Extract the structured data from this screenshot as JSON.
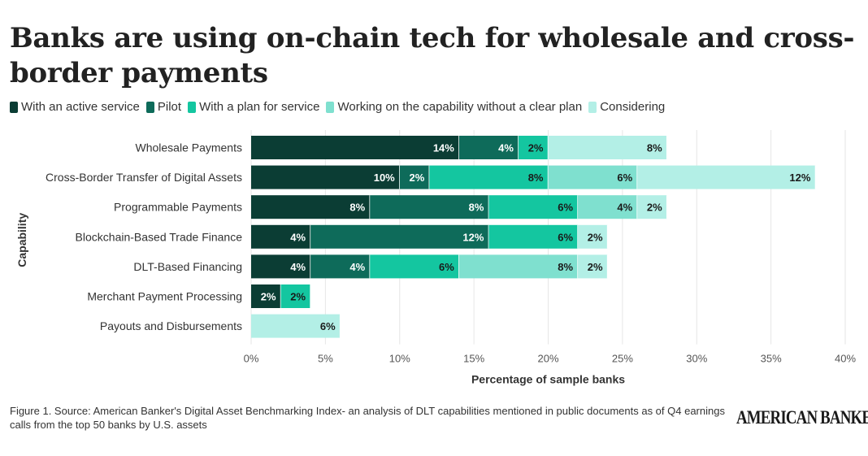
{
  "title": "Banks are using on-chain tech for wholesale and cross-border payments",
  "footer": {
    "caption": "Figure 1. Source: American Banker's Digital Asset Benchmarking Index- an analysis of DLT capabilities mentioned in public documents as of Q4 earnings calls from the top 50 banks by U.S. assets",
    "brand": "AMERICAN BANKER"
  },
  "chart_data": {
    "type": "bar",
    "orientation": "horizontal",
    "stacked": true,
    "categories": [
      "Wholesale Payments",
      "Cross-Border Transfer of Digital Assets",
      "Programmable Payments",
      "Blockchain-Based Trade Finance",
      "DLT-Based Financing",
      "Merchant Payment Processing",
      "Payouts and Disbursements"
    ],
    "series": [
      {
        "name": "With an active service",
        "color": "#0b3d34",
        "values": [
          14,
          10,
          8,
          4,
          4,
          2,
          0
        ]
      },
      {
        "name": "Pilot",
        "color": "#0e6b5a",
        "values": [
          4,
          2,
          8,
          12,
          4,
          0,
          0
        ]
      },
      {
        "name": "With a plan for service",
        "color": "#14c6a0",
        "values": [
          2,
          8,
          6,
          6,
          6,
          2,
          0
        ]
      },
      {
        "name": "Working on the capability without a clear plan",
        "color": "#7fe0cf",
        "values": [
          0,
          6,
          4,
          0,
          8,
          0,
          0
        ]
      },
      {
        "name": "Considering",
        "color": "#b3efe6",
        "values": [
          8,
          12,
          2,
          2,
          2,
          0,
          6
        ]
      }
    ],
    "xlabel": "Percentage of sample banks",
    "ylabel": "Capability",
    "xlim": [
      0,
      40
    ],
    "xticks": [
      "0%",
      "5%",
      "10%",
      "15%",
      "20%",
      "25%",
      "30%",
      "35%",
      "40%"
    ],
    "value_suffix": "%",
    "grid": true,
    "legend_position": "top-left"
  }
}
